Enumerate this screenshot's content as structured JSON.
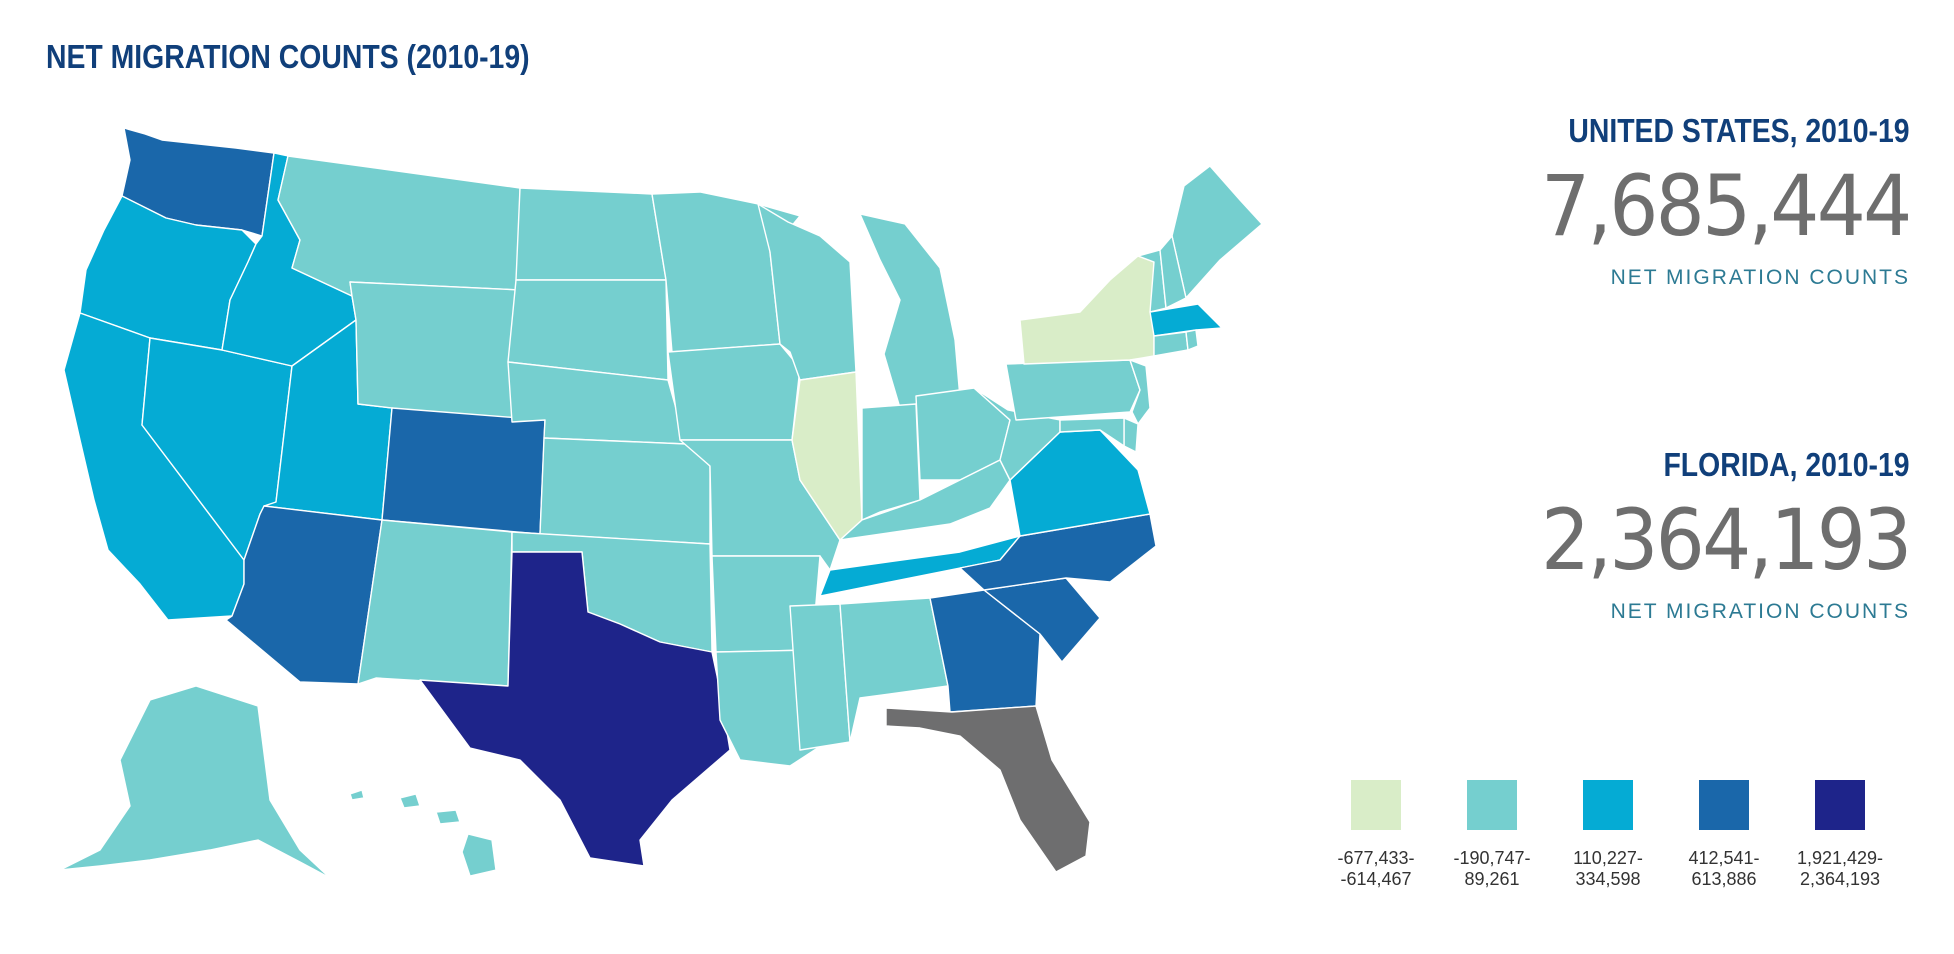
{
  "title": "NET MIGRATION COUNTS (2010-19)",
  "colors": {
    "bin1": "#d9edc8",
    "bin2": "#75cfcf",
    "bin3": "#05abd4",
    "bin4": "#1a67aa",
    "bin5": "#1e248a",
    "selected": "#6e6e6f",
    "heading": "#103f7a",
    "caption": "#2c7a93",
    "big_number": "#6e6e6e"
  },
  "summary": {
    "us": {
      "heading": "UNITED STATES, 2010-19",
      "value": "7,685,444",
      "caption": "NET MIGRATION COUNTS"
    },
    "florida": {
      "heading": "FLORIDA, 2010-19",
      "value": "2,364,193",
      "caption": "NET MIGRATION COUNTS"
    }
  },
  "legend": [
    {
      "line1": "-677,433-",
      "line2": "-614,467",
      "color": "#d9edc8"
    },
    {
      "line1": "-190,747-",
      "line2": "89,261",
      "color": "#75cfcf"
    },
    {
      "line1": "110,227-",
      "line2": "334,598",
      "color": "#05abd4"
    },
    {
      "line1": "412,541-",
      "line2": "613,886",
      "color": "#1a67aa"
    },
    {
      "line1": "1,921,429-",
      "line2": "2,364,193",
      "color": "#1e248a"
    }
  ],
  "map": {
    "selected_state": "FL",
    "state_bins": {
      "WA": 4,
      "OR": 3,
      "CA": 3,
      "NV": 3,
      "ID": 3,
      "UT": 3,
      "AZ": 4,
      "MT": 2,
      "WY": 2,
      "CO": 4,
      "NM": 2,
      "ND": 2,
      "SD": 2,
      "NE": 2,
      "KS": 2,
      "OK": 2,
      "TX": 5,
      "MN": 2,
      "IA": 2,
      "MO": 2,
      "AR": 2,
      "LA": 2,
      "WI": 2,
      "IL": 1,
      "MI": 2,
      "IN": 2,
      "OH": 2,
      "KY": 2,
      "TN": 3,
      "MS": 2,
      "AL": 2,
      "GA": 4,
      "FL": 0,
      "SC": 4,
      "NC": 4,
      "VA": 3,
      "WV": 2,
      "PA": 2,
      "NY": 1,
      "ME": 2,
      "VT": 2,
      "NH": 2,
      "MA": 3,
      "CT": 2,
      "RI": 2,
      "NJ": 2,
      "DE": 2,
      "MD": 2,
      "AK": 2,
      "HI": 2
    }
  }
}
